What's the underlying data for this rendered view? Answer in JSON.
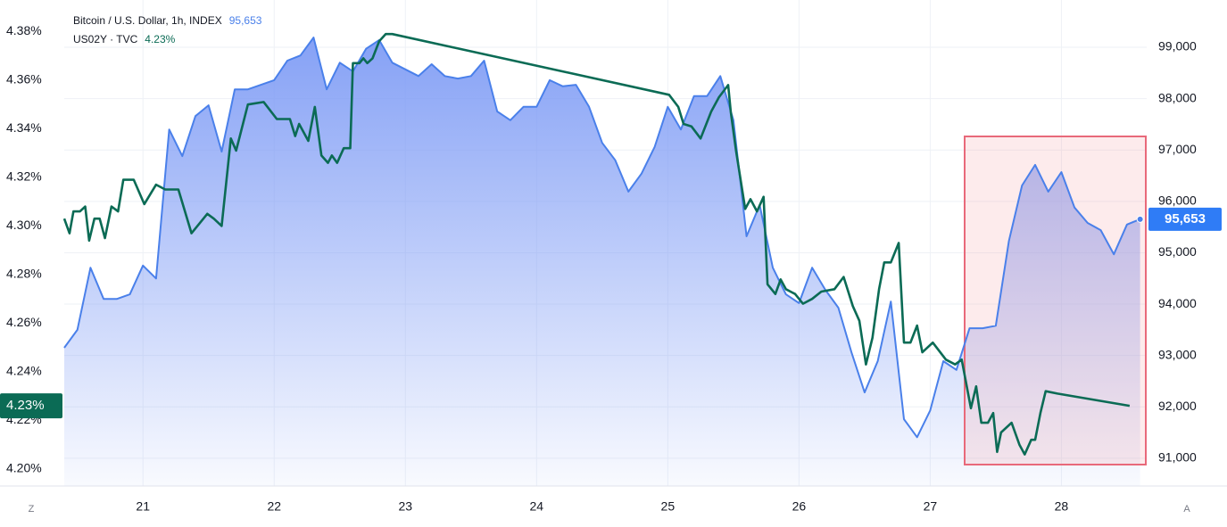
{
  "chart_data": {
    "type": "line",
    "xlim": [
      20.4,
      28.65
    ],
    "xticks": [
      21,
      22,
      23,
      24,
      25,
      26,
      27,
      28
    ],
    "ylim": [
      4.193,
      4.393
    ],
    "yticks": [
      {
        "value": 4.2,
        "label": "4.20%"
      },
      {
        "value": 4.22,
        "label": "4.22%"
      },
      {
        "value": 4.24,
        "label": "4.24%"
      },
      {
        "value": 4.26,
        "label": "4.26%"
      },
      {
        "value": 4.28,
        "label": "4.28%"
      },
      {
        "value": 4.3,
        "label": "4.30%"
      },
      {
        "value": 4.32,
        "label": "4.32%"
      },
      {
        "value": 4.34,
        "label": "4.34%"
      },
      {
        "value": 4.36,
        "label": "4.36%"
      },
      {
        "value": 4.38,
        "label": "4.38%"
      }
    ],
    "y2lim": [
      90460,
      99920
    ],
    "y2ticks": [
      {
        "value": 91000,
        "label": "91,000"
      },
      {
        "value": 92000,
        "label": "92,000"
      },
      {
        "value": 93000,
        "label": "93,000"
      },
      {
        "value": 94000,
        "label": "94,000"
      },
      {
        "value": 95000,
        "label": "95,000"
      },
      {
        "value": 96000,
        "label": "96,000"
      },
      {
        "value": 97000,
        "label": "97,000"
      },
      {
        "value": 98000,
        "label": "98,000"
      },
      {
        "value": 99000,
        "label": "99,000"
      }
    ],
    "grid": true,
    "corner_buttons": {
      "left": "Z",
      "right": "A"
    },
    "series": [
      {
        "name": "Bitcoin / U.S. Dollar, 1h, INDEX",
        "color": "#4a80ea",
        "axis": "y2",
        "area": true,
        "last_value_label": "95,653",
        "x": [
          20.4,
          20.5,
          20.6,
          20.7,
          20.8,
          20.9,
          21.0,
          21.1,
          21.2,
          21.3,
          21.4,
          21.5,
          21.6,
          21.7,
          21.8,
          21.9,
          22.0,
          22.1,
          22.2,
          22.3,
          22.4,
          22.5,
          22.6,
          22.7,
          22.8,
          22.9,
          23.0,
          23.1,
          23.2,
          23.3,
          23.4,
          23.5,
          23.6,
          23.7,
          23.8,
          23.9,
          24.0,
          24.1,
          24.2,
          24.3,
          24.4,
          24.5,
          24.6,
          24.7,
          24.8,
          24.9,
          25.0,
          25.1,
          25.2,
          25.3,
          25.4,
          25.5,
          25.6,
          25.7,
          25.8,
          25.9,
          26.0,
          26.1,
          26.2,
          26.3,
          26.4,
          26.5,
          26.6,
          26.7,
          26.8,
          26.9,
          27.0,
          27.1,
          27.2,
          27.3,
          27.4,
          27.5,
          27.6,
          27.7,
          27.8,
          27.9,
          28.0,
          28.1,
          28.2,
          28.3,
          28.4,
          28.5,
          28.6
        ],
        "values": [
          93150,
          93500,
          94710,
          94100,
          94100,
          94190,
          94750,
          94500,
          97400,
          96880,
          97660,
          97870,
          96970,
          98180,
          98180,
          98270,
          98360,
          98740,
          98840,
          99190,
          98180,
          98700,
          98530,
          98970,
          99140,
          98700,
          98570,
          98440,
          98670,
          98440,
          98390,
          98440,
          98740,
          97750,
          97580,
          97840,
          97840,
          98360,
          98240,
          98270,
          97840,
          97140,
          96800,
          96190,
          96540,
          97060,
          97840,
          97400,
          98050,
          98050,
          98440,
          97580,
          95320,
          95930,
          94710,
          94190,
          94020,
          94710,
          94280,
          93930,
          93060,
          92280,
          92890,
          94050,
          91760,
          91410,
          91930,
          92890,
          92720,
          93530,
          93530,
          93580,
          95230,
          96310,
          96710,
          96190,
          96570,
          95880,
          95580,
          95440,
          94970,
          95550,
          95653
        ]
      },
      {
        "name": "US02Y · TVC",
        "color": "#0b6b55",
        "last_value_label": "4.23%",
        "x": [
          20.4,
          20.44,
          20.47,
          20.52,
          20.56,
          20.59,
          20.63,
          20.67,
          20.71,
          20.76,
          20.81,
          20.85,
          20.93,
          21.01,
          21.1,
          21.17,
          21.27,
          21.37,
          21.49,
          21.54,
          21.6,
          21.67,
          21.71,
          21.8,
          21.92,
          22.02,
          22.12,
          22.16,
          22.19,
          22.26,
          22.31,
          22.36,
          22.41,
          22.44,
          22.48,
          22.53,
          22.58,
          22.6,
          22.65,
          22.68,
          22.71,
          22.75,
          22.8,
          22.85,
          22.9,
          25.01,
          25.08,
          25.12,
          25.18,
          25.25,
          25.33,
          25.39,
          25.46,
          25.48,
          25.52,
          25.59,
          25.63,
          25.68,
          25.73,
          25.76,
          25.82,
          25.86,
          25.9,
          25.97,
          26.03,
          26.1,
          26.17,
          26.27,
          26.34,
          26.41,
          26.46,
          26.51,
          26.56,
          26.61,
          26.65,
          26.7,
          26.76,
          26.8,
          26.85,
          26.9,
          26.94,
          27.02,
          27.12,
          27.19,
          27.24,
          27.31,
          27.35,
          27.39,
          27.44,
          27.48,
          27.51,
          27.54,
          27.62,
          27.68,
          27.72,
          27.77,
          27.8,
          27.84,
          27.88,
          27.97,
          28.52
        ],
        "values": [
          4.303,
          4.297,
          4.306,
          4.306,
          4.308,
          4.294,
          4.303,
          4.303,
          4.295,
          4.308,
          4.306,
          4.319,
          4.319,
          4.309,
          4.317,
          4.315,
          4.315,
          4.297,
          4.305,
          4.303,
          4.3,
          4.336,
          4.331,
          4.35,
          4.351,
          4.344,
          4.344,
          4.337,
          4.342,
          4.335,
          4.349,
          4.329,
          4.326,
          4.329,
          4.326,
          4.332,
          4.332,
          4.367,
          4.367,
          4.369,
          4.367,
          4.369,
          4.376,
          4.379,
          4.379,
          4.354,
          4.349,
          4.342,
          4.341,
          4.336,
          4.347,
          4.353,
          4.358,
          4.347,
          4.331,
          4.307,
          4.311,
          4.306,
          4.312,
          4.276,
          4.272,
          4.278,
          4.274,
          4.272,
          4.268,
          4.27,
          4.273,
          4.274,
          4.279,
          4.267,
          4.261,
          4.243,
          4.254,
          4.274,
          4.285,
          4.285,
          4.293,
          4.252,
          4.252,
          4.259,
          4.248,
          4.252,
          4.245,
          4.243,
          4.245,
          4.225,
          4.234,
          4.219,
          4.219,
          4.223,
          4.207,
          4.215,
          4.219,
          4.21,
          4.206,
          4.212,
          4.212,
          4.223,
          4.232,
          4.231,
          4.226
        ]
      }
    ]
  }
}
